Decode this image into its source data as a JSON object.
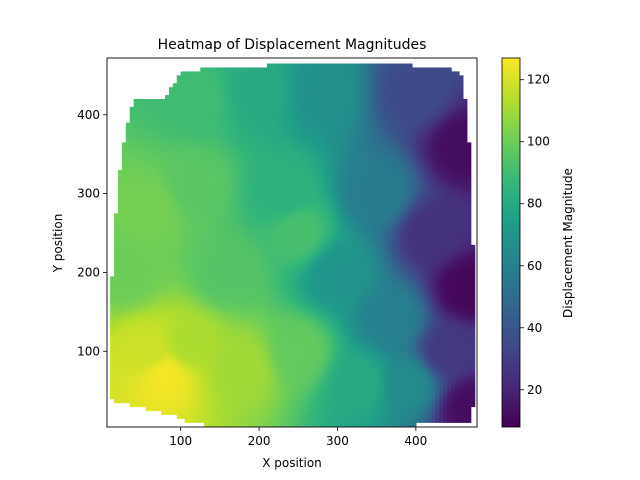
{
  "chart_data": {
    "type": "heatmap",
    "title": "Heatmap of Displacement Magnitudes",
    "xlabel": "X position",
    "ylabel": "Y position",
    "xlim": [
      6,
      478
    ],
    "ylim": [
      4,
      472
    ],
    "x_ticks": [
      100,
      200,
      300,
      400
    ],
    "y_ticks": [
      100,
      200,
      300,
      400
    ],
    "colorbar": {
      "label": "Displacement Magnitude",
      "range": [
        8,
        127
      ],
      "ticks": [
        20,
        40,
        60,
        80,
        100,
        120
      ],
      "colormap": "viridis"
    },
    "grid": false,
    "data_extent": {
      "x": [
        10,
        475
      ],
      "y": [
        5,
        465
      ]
    },
    "data_bounds": {
      "left_edge": [
        [
          40,
          10
        ],
        [
          100,
          10
        ],
        [
          190,
          12
        ],
        [
          230,
          16
        ],
        [
          290,
          18
        ],
        [
          350,
          25
        ],
        [
          400,
          35
        ],
        [
          450,
          50
        ],
        [
          455,
          70
        ],
        [
          460,
          80
        ]
      ],
      "right_edge": [
        [
          10,
          470
        ],
        [
          50,
          475
        ],
        [
          100,
          475
        ],
        [
          200,
          478
        ],
        [
          250,
          470
        ],
        [
          300,
          469
        ],
        [
          360,
          468
        ],
        [
          400,
          465
        ],
        [
          440,
          460
        ],
        [
          460,
          455
        ]
      ],
      "bottom_edge": [
        [
          10,
          40
        ],
        [
          25,
          35
        ],
        [
          45,
          30
        ],
        [
          65,
          25
        ],
        [
          90,
          20
        ],
        [
          110,
          10
        ],
        [
          150,
          5
        ],
        [
          300,
          5
        ],
        [
          420,
          8
        ],
        [
          470,
          10
        ]
      ],
      "top_edge": [
        [
          80,
          420
        ],
        [
          100,
          455
        ],
        [
          150,
          460
        ],
        [
          200,
          462
        ],
        [
          300,
          468
        ],
        [
          360,
          465
        ],
        [
          400,
          462
        ],
        [
          430,
          460
        ],
        [
          460,
          455
        ],
        [
          470,
          420
        ]
      ]
    },
    "field_samples": [
      {
        "x": 80,
        "y": 70,
        "value": 125
      },
      {
        "x": 60,
        "y": 100,
        "value": 118
      },
      {
        "x": 110,
        "y": 110,
        "value": 112
      },
      {
        "x": 30,
        "y": 200,
        "value": 100
      },
      {
        "x": 60,
        "y": 280,
        "value": 102
      },
      {
        "x": 120,
        "y": 310,
        "value": 96
      },
      {
        "x": 120,
        "y": 420,
        "value": 90
      },
      {
        "x": 160,
        "y": 200,
        "value": 95
      },
      {
        "x": 180,
        "y": 80,
        "value": 110
      },
      {
        "x": 230,
        "y": 300,
        "value": 84
      },
      {
        "x": 250,
        "y": 250,
        "value": 92
      },
      {
        "x": 250,
        "y": 100,
        "value": 98
      },
      {
        "x": 200,
        "y": 430,
        "value": 80
      },
      {
        "x": 280,
        "y": 430,
        "value": 68
      },
      {
        "x": 300,
        "y": 200,
        "value": 70
      },
      {
        "x": 330,
        "y": 60,
        "value": 80
      },
      {
        "x": 350,
        "y": 300,
        "value": 58
      },
      {
        "x": 370,
        "y": 140,
        "value": 60
      },
      {
        "x": 390,
        "y": 60,
        "value": 65
      },
      {
        "x": 400,
        "y": 430,
        "value": 35
      },
      {
        "x": 420,
        "y": 250,
        "value": 25
      },
      {
        "x": 440,
        "y": 100,
        "value": 28
      },
      {
        "x": 460,
        "y": 360,
        "value": 12
      },
      {
        "x": 465,
        "y": 180,
        "value": 10
      },
      {
        "x": 470,
        "y": 30,
        "value": 12
      }
    ]
  }
}
